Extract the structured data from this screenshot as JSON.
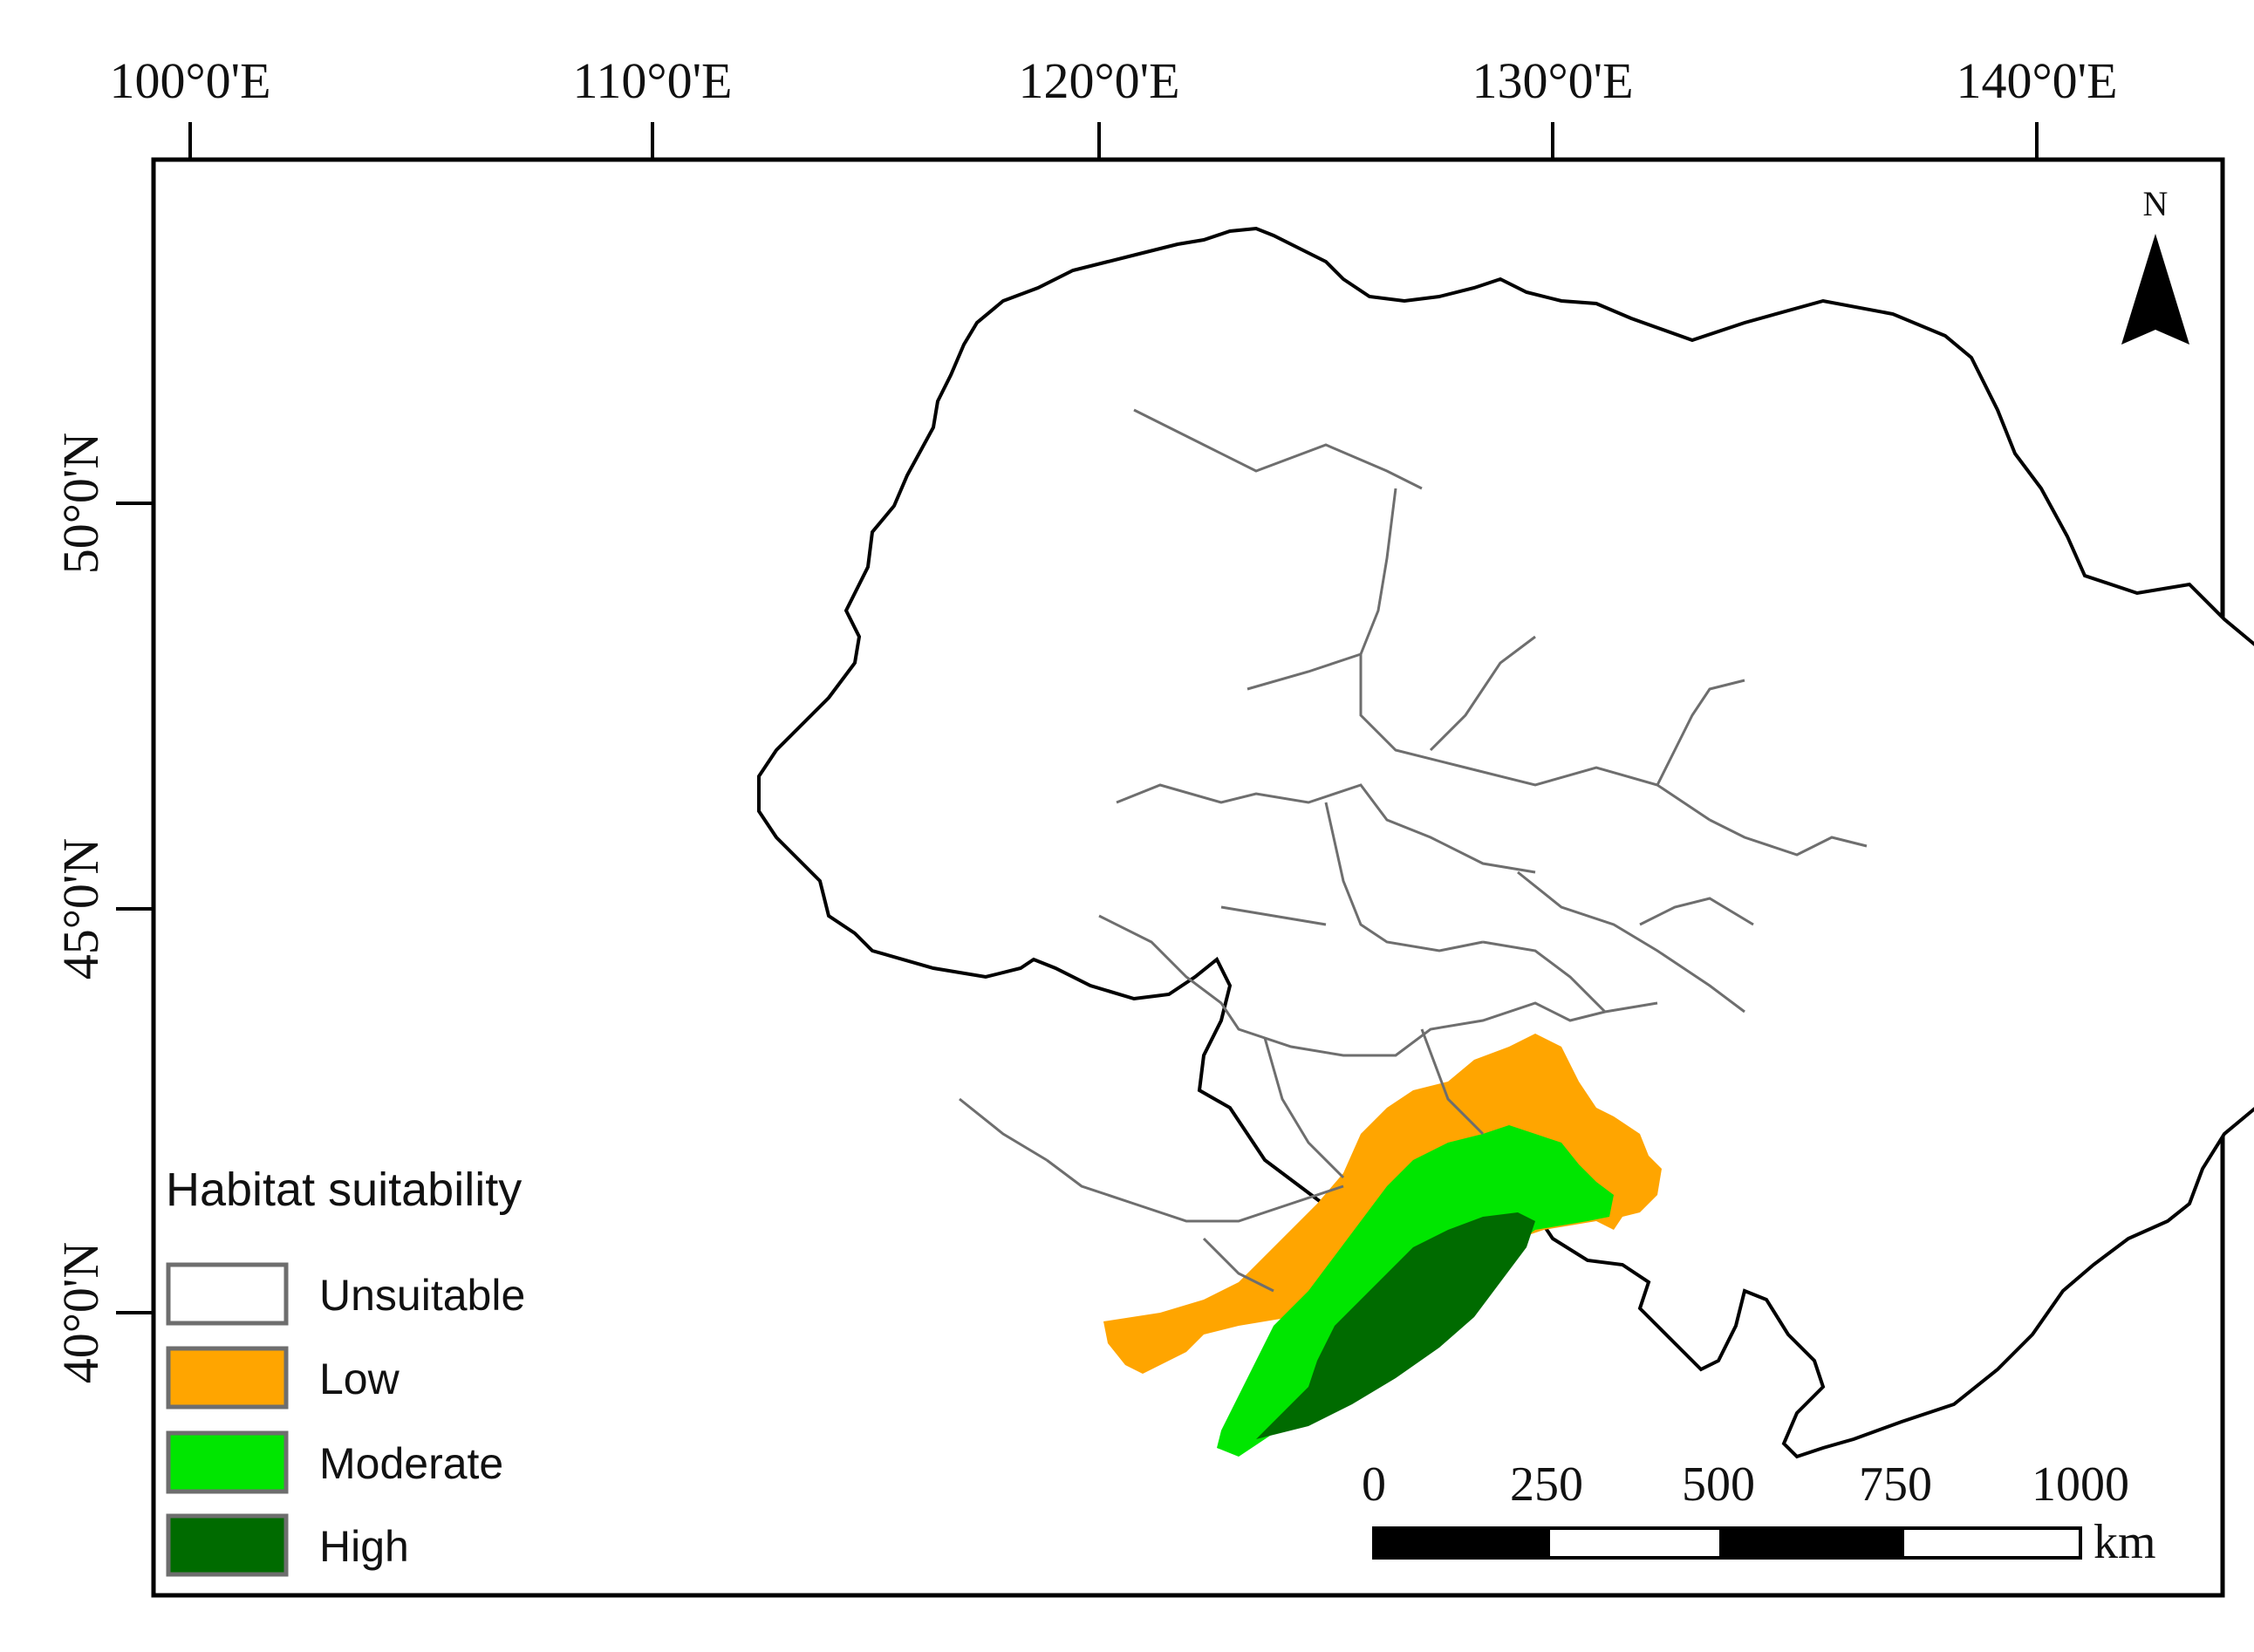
{
  "map": {
    "axes": {
      "longitude_labels": [
        "100°0'E",
        "110°0'E",
        "120°0'E",
        "130°0'E",
        "140°0'E"
      ],
      "latitude_labels": [
        "50°0'N",
        "45°0'N",
        "40°0'N"
      ]
    },
    "north_arrow": {
      "label": "N",
      "icon": "north-arrow-icon"
    },
    "legend": {
      "title": "Habitat suitability",
      "items": [
        {
          "label": "Unsuitable",
          "color": "#ffffff"
        },
        {
          "label": "Low",
          "color": "#ffa500"
        },
        {
          "label": "Moderate",
          "color": "#00e600"
        },
        {
          "label": "High",
          "color": "#006b00"
        }
      ]
    },
    "scale_bar": {
      "ticks": [
        "0",
        "250",
        "500",
        "750",
        "1000"
      ],
      "unit": "km"
    },
    "colors": {
      "region_outline": "#000000",
      "province_boundary": "#6e6e6e",
      "legend_border": "#6e6e6e"
    }
  }
}
